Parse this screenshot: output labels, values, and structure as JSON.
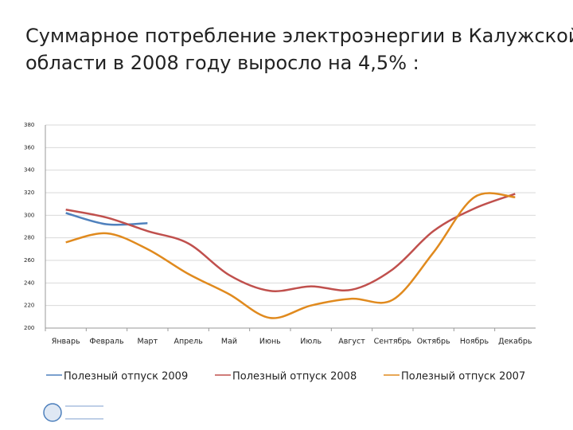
{
  "chart_data": {
    "type": "line",
    "title": [
      "Суммарное потребление электроэнергии в Калужской",
      "области в 2008 году выросло на 4,5% :"
    ],
    "categories": [
      "Январь",
      "Февраль",
      "Март",
      "Апрель",
      "Май",
      "Июнь",
      "Июль",
      "Август",
      "Сентябрь",
      "Октябрь",
      "Ноябрь",
      "Декабрь"
    ],
    "series": [
      {
        "name": "Полезный отпуск 2009",
        "color": "#4f81bd",
        "values": [
          302,
          292,
          293,
          null,
          null,
          null,
          null,
          null,
          null,
          null,
          null,
          null
        ]
      },
      {
        "name": "Полезный отпуск 2008",
        "color": "#c0504d",
        "values": [
          305,
          298,
          286,
          275,
          247,
          233,
          237,
          234,
          252,
          286,
          306,
          319
        ]
      },
      {
        "name": "Полезный отпуск 2007",
        "color": "#e08a1e",
        "values": [
          276,
          284,
          270,
          248,
          230,
          209,
          220,
          226,
          225,
          267,
          316,
          316
        ]
      }
    ],
    "ylim": [
      200,
      380
    ],
    "yticks": [
      200,
      220,
      240,
      260,
      280,
      300,
      320,
      340,
      360,
      380
    ],
    "grid": true,
    "legend": "bottom"
  }
}
